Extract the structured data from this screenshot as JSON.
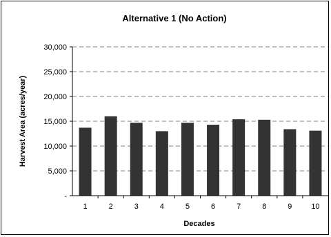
{
  "chart_data": {
    "type": "bar",
    "title": "Alternative 1 (No Action)",
    "xlabel": "Decades",
    "ylabel": "Harvest Area (acres/year)",
    "categories": [
      "1",
      "2",
      "3",
      "4",
      "5",
      "6",
      "7",
      "8",
      "9",
      "10"
    ],
    "values": [
      13700,
      16000,
      14700,
      13000,
      14700,
      14300,
      15400,
      15300,
      13400,
      13100
    ],
    "ylim": [
      0,
      30000
    ],
    "yticks": [
      0,
      5000,
      10000,
      15000,
      20000,
      25000,
      30000
    ],
    "ytick_labels": [
      "-",
      "5,000",
      "10,000",
      "15,000",
      "20,000",
      "25,000",
      "30,000"
    ],
    "grid": true,
    "grid_style": "dashed",
    "bar_color": "#333333",
    "legend": "none"
  }
}
